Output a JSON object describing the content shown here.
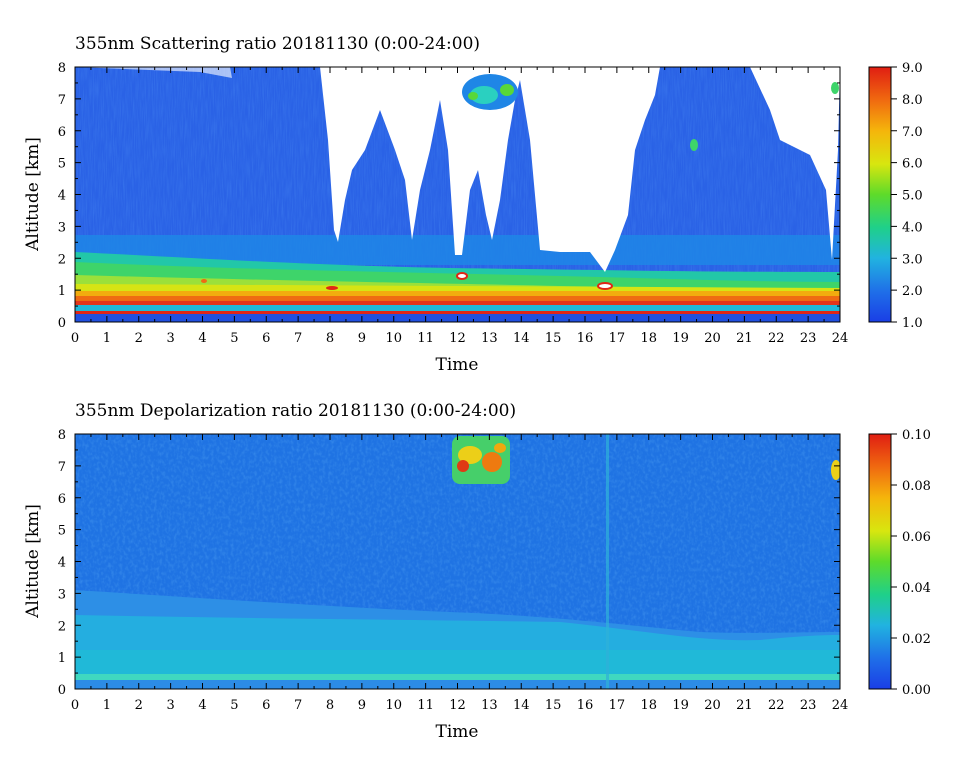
{
  "chart_data": [
    {
      "type": "heatmap",
      "title": "355nm Scattering ratio  20181130 (0:00-24:00)",
      "xlabel": "Time",
      "ylabel": "Altitude [km]",
      "xlim": [
        0,
        24
      ],
      "ylim": [
        0,
        8
      ],
      "x_ticks": [
        "0",
        "1",
        "2",
        "3",
        "4",
        "5",
        "6",
        "7",
        "8",
        "9",
        "10",
        "11",
        "12",
        "13",
        "14",
        "15",
        "16",
        "17",
        "18",
        "19",
        "20",
        "21",
        "22",
        "23",
        "24"
      ],
      "y_ticks": [
        "0",
        "1",
        "2",
        "3",
        "4",
        "5",
        "6",
        "7",
        "8"
      ],
      "colorbar": {
        "min": 1.0,
        "max": 9.0,
        "ticks": [
          "1.0",
          "2.0",
          "3.0",
          "4.0",
          "5.0",
          "6.0",
          "7.0",
          "8.0",
          "9.0"
        ]
      },
      "features": [
        {
          "kind": "boundary_layer",
          "altitude_km": [
            0.3,
            1.0
          ],
          "value": 7.0
        },
        {
          "kind": "aerosol_layer",
          "altitude_km": [
            1.0,
            2.0
          ],
          "value": 4.0
        },
        {
          "kind": "free_troposphere",
          "altitude_km": [
            2.0,
            8.0
          ],
          "value": 1.8
        },
        {
          "kind": "cloud",
          "time_h": [
            11.9,
            13.7
          ],
          "altitude_km": [
            6.7,
            7.6
          ],
          "value": 3.5
        }
      ]
    },
    {
      "type": "heatmap",
      "title": "355nm Depolarization ratio  20181130 (0:00-24:00)",
      "xlabel": "Time",
      "ylabel": "Altitude [km]",
      "xlim": [
        0,
        24
      ],
      "ylim": [
        0,
        8
      ],
      "x_ticks": [
        "0",
        "1",
        "2",
        "3",
        "4",
        "5",
        "6",
        "7",
        "8",
        "9",
        "10",
        "11",
        "12",
        "13",
        "14",
        "15",
        "16",
        "17",
        "18",
        "19",
        "20",
        "21",
        "22",
        "23",
        "24"
      ],
      "y_ticks": [
        "0",
        "1",
        "2",
        "3",
        "4",
        "5",
        "6",
        "7",
        "8"
      ],
      "colorbar": {
        "min": 0.0,
        "max": 0.1,
        "ticks": [
          "0.00",
          "0.02",
          "0.04",
          "0.06",
          "0.08",
          "0.10"
        ]
      },
      "features": [
        {
          "kind": "boundary_layer",
          "altitude_km": [
            0.2,
            2.0
          ],
          "value": 0.018
        },
        {
          "kind": "free_troposphere",
          "altitude_km": [
            2.5,
            8.0
          ],
          "value": 0.012
        },
        {
          "kind": "cloud",
          "time_h": [
            11.9,
            13.7
          ],
          "altitude_km": [
            6.6,
            7.9
          ],
          "value": 0.07
        }
      ]
    }
  ]
}
